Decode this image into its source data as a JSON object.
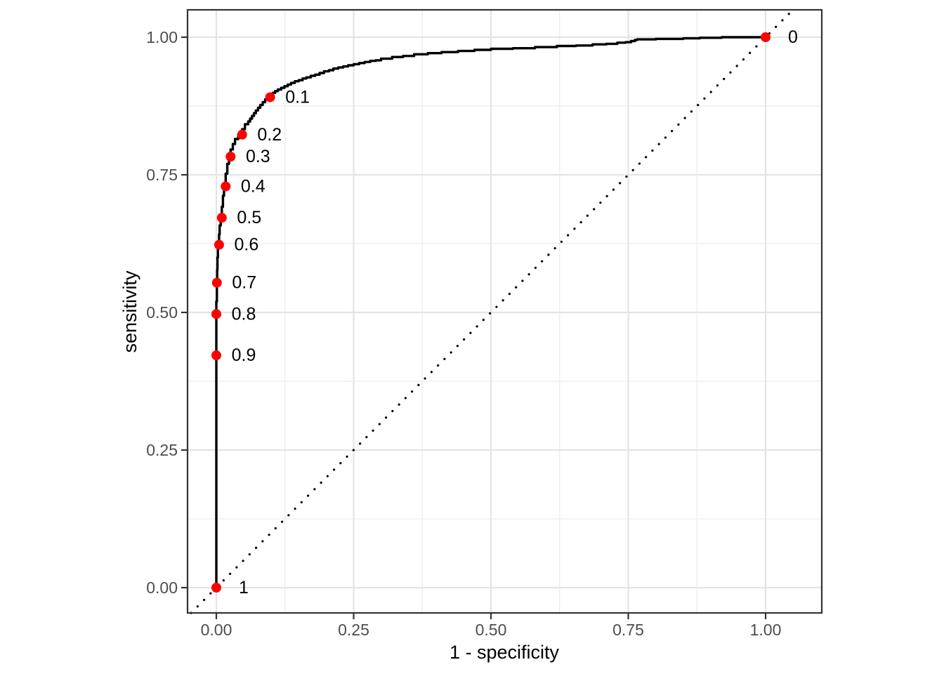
{
  "chart_data": {
    "type": "line",
    "title": "",
    "xlabel": "1 - specificity",
    "ylabel": "sensitivity",
    "x_ticks": {
      "values": [
        0,
        0.25,
        0.5,
        0.75,
        1.0
      ],
      "labels": [
        "0.00",
        "0.25",
        "0.50",
        "0.75",
        "1.00"
      ]
    },
    "y_ticks": {
      "values": [
        0,
        0.25,
        0.5,
        0.75,
        1.0
      ],
      "labels": [
        "0.00",
        "0.25",
        "0.50",
        "0.75",
        "1.00"
      ]
    },
    "x_minor": [
      0.125,
      0.375,
      0.625,
      0.875
    ],
    "y_minor": [
      0.125,
      0.375,
      0.625,
      0.875
    ],
    "xlim": [
      -0.052,
      1.102
    ],
    "ylim": [
      -0.046,
      1.05
    ],
    "grid": "major+minor",
    "legend": "none",
    "series": [
      {
        "name": "roc-curve",
        "type": "step",
        "color": "#000000",
        "points": [
          [
            0,
            0
          ],
          [
            0,
            0.42
          ],
          [
            0,
            0.497
          ],
          [
            0.001,
            0.52
          ],
          [
            0.0015,
            0.554
          ],
          [
            0.002,
            0.578
          ],
          [
            0.003,
            0.6
          ],
          [
            0.005,
            0.624
          ],
          [
            0.006,
            0.642
          ],
          [
            0.008,
            0.658
          ],
          [
            0.01,
            0.672
          ],
          [
            0.012,
            0.692
          ],
          [
            0.014,
            0.712
          ],
          [
            0.017,
            0.73
          ],
          [
            0.02,
            0.752
          ],
          [
            0.023,
            0.77
          ],
          [
            0.026,
            0.783
          ],
          [
            0.03,
            0.796
          ],
          [
            0.034,
            0.806
          ],
          [
            0.04,
            0.815
          ],
          [
            0.047,
            0.823
          ],
          [
            0.052,
            0.833
          ],
          [
            0.058,
            0.842
          ],
          [
            0.0615,
            0.847
          ],
          [
            0.065,
            0.852
          ],
          [
            0.0685,
            0.857
          ],
          [
            0.072,
            0.862
          ],
          [
            0.076,
            0.867
          ],
          [
            0.08,
            0.872
          ],
          [
            0.0845,
            0.877
          ],
          [
            0.089,
            0.882
          ],
          [
            0.0935,
            0.887
          ],
          [
            0.098,
            0.891
          ],
          [
            0.103,
            0.895
          ],
          [
            0.107,
            0.899
          ],
          [
            0.112,
            0.902
          ],
          [
            0.118,
            0.905
          ],
          [
            0.124,
            0.908
          ],
          [
            0.13,
            0.911
          ],
          [
            0.136,
            0.914
          ],
          [
            0.143,
            0.917
          ],
          [
            0.15,
            0.92
          ],
          [
            0.157,
            0.922
          ],
          [
            0.164,
            0.925
          ],
          [
            0.172,
            0.927
          ],
          [
            0.18,
            0.93
          ],
          [
            0.188,
            0.932
          ],
          [
            0.196,
            0.935
          ],
          [
            0.205,
            0.938
          ],
          [
            0.213,
            0.94
          ],
          [
            0.222,
            0.943
          ],
          [
            0.231,
            0.945
          ],
          [
            0.24,
            0.947
          ],
          [
            0.25,
            0.949
          ],
          [
            0.26,
            0.951
          ],
          [
            0.27,
            0.953
          ],
          [
            0.28,
            0.955
          ],
          [
            0.29,
            0.957
          ],
          [
            0.3,
            0.958
          ],
          [
            0.32,
            0.961
          ],
          [
            0.34,
            0.964
          ],
          [
            0.36,
            0.966
          ],
          [
            0.385,
            0.969
          ],
          [
            0.41,
            0.971
          ],
          [
            0.44,
            0.973
          ],
          [
            0.47,
            0.975
          ],
          [
            0.5,
            0.977
          ],
          [
            0.54,
            0.979
          ],
          [
            0.58,
            0.98
          ],
          [
            0.62,
            0.982
          ],
          [
            0.655,
            0.984
          ],
          [
            0.685,
            0.985
          ],
          [
            0.71,
            0.987
          ],
          [
            0.73,
            0.988
          ],
          [
            0.745,
            0.99
          ],
          [
            0.755,
            0.991
          ],
          [
            0.762,
            0.993
          ],
          [
            0.766,
            0.995
          ],
          [
            0.8,
            0.996
          ],
          [
            0.85,
            0.997
          ],
          [
            0.88,
            0.998
          ],
          [
            0.92,
            0.999
          ],
          [
            0.96,
            1.0
          ],
          [
            1.0,
            1.0
          ]
        ]
      },
      {
        "name": "chance-diagonal",
        "type": "dotted-line",
        "color": "#000000",
        "points": [
          [
            -0.046,
            -0.046
          ],
          [
            1.0497,
            1.0497
          ]
        ]
      },
      {
        "name": "threshold-points",
        "type": "scatter",
        "color": "#FF0000",
        "label_color": "#000000",
        "points": [
          {
            "label": "0",
            "x": 1.0,
            "y": 1.0
          },
          {
            "label": "0.1",
            "x": 0.098,
            "y": 0.891
          },
          {
            "label": "0.2",
            "x": 0.047,
            "y": 0.823
          },
          {
            "label": "0.3",
            "x": 0.026,
            "y": 0.783
          },
          {
            "label": "0.4",
            "x": 0.017,
            "y": 0.729
          },
          {
            "label": "0.5",
            "x": 0.01,
            "y": 0.672
          },
          {
            "label": "0.6",
            "x": 0.005,
            "y": 0.623
          },
          {
            "label": "0.7",
            "x": 0.001,
            "y": 0.554
          },
          {
            "label": "0.8",
            "x": 0.0,
            "y": 0.497
          },
          {
            "label": "0.9",
            "x": 0.0,
            "y": 0.422
          },
          {
            "label": "1",
            "x": 0.0,
            "y": 0.0
          }
        ]
      }
    ]
  },
  "style": {
    "background": "#FFFFFF",
    "panel_background": "#FFFFFF",
    "grid_major_color": "#E4E4E4",
    "grid_minor_color": "#ECECEC",
    "panel_border_color": "#333333",
    "tick_mark_color": "#333333",
    "tick_label_color": "#4D4D4D",
    "axis_title_color": "#000000",
    "curve_color": "#000000",
    "threshold_color": "#FF0000"
  }
}
